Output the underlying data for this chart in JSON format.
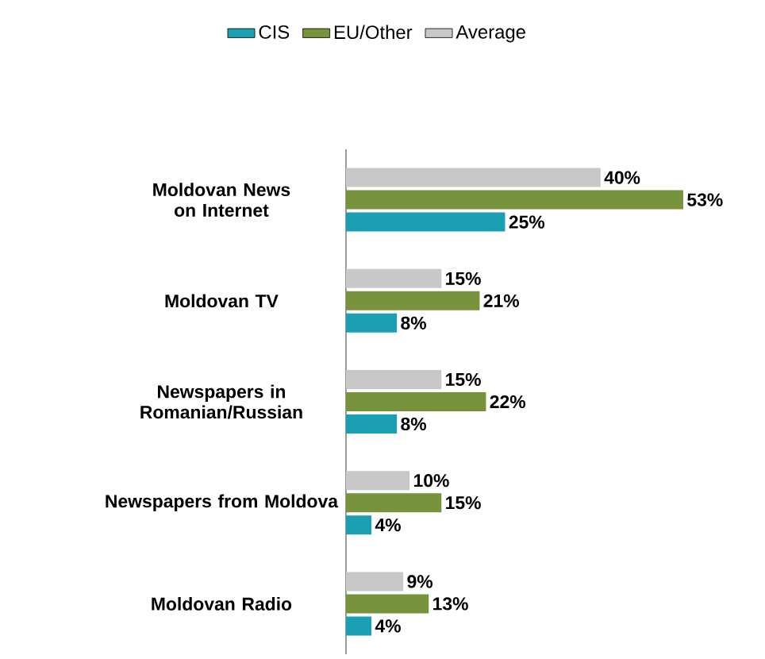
{
  "chart_data": {
    "type": "bar",
    "orientation": "horizontal",
    "legend": "top",
    "categories": [
      "Moldovan News on Internet",
      "Moldovan TV",
      "Newspapers in Romanian/Russian",
      "Newspapers from Moldova",
      "Moldovan Radio"
    ],
    "series": [
      {
        "name": "CIS",
        "color": "#1a9fb3",
        "values": [
          25,
          8,
          8,
          4,
          4
        ],
        "value_labels": [
          "25%",
          "8%",
          "8%",
          "4%",
          "4%"
        ]
      },
      {
        "name": "EU/Other",
        "color": "#77933c",
        "values": [
          53,
          21,
          22,
          15,
          13
        ],
        "value_labels": [
          "53%",
          "21%",
          "22%",
          "15%",
          "13%"
        ]
      },
      {
        "name": "Average",
        "color": "#c8c8c8",
        "values": [
          40,
          15,
          15,
          10,
          9
        ],
        "value_labels": [
          "40%",
          "15%",
          "15%",
          "10%",
          "9%"
        ]
      }
    ]
  }
}
